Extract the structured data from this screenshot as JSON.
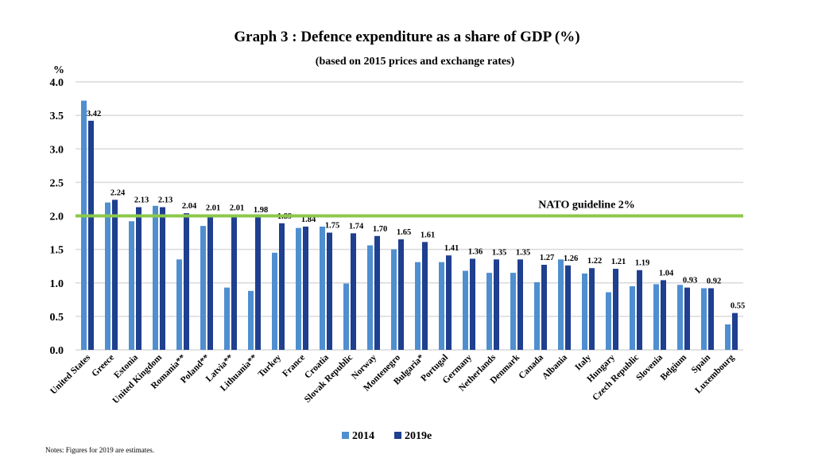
{
  "chart_data": {
    "type": "bar",
    "title": "Graph 3 : Defence expenditure as a share of GDP (%)",
    "subtitle": "(based on 2015 prices and exchange rates)",
    "ylabel": "%",
    "ylim": [
      0,
      4.0
    ],
    "yticks": [
      "0.0",
      "0.5",
      "1.0",
      "1.5",
      "2.0",
      "2.5",
      "3.0",
      "3.5",
      "4.0"
    ],
    "grid": true,
    "legend_position": "bottom",
    "categories": [
      "United States",
      "Greece",
      "Estonia",
      "United Kingdom",
      "Romania**",
      "Poland**",
      "Latvia**",
      "Lithuania**",
      "Turkey",
      "France",
      "Croatia",
      "Slovak Republic",
      "Norway",
      "Montenegro",
      "Bulgaria*",
      "Portugal",
      "Germany",
      "Netherlands",
      "Denmark",
      "Canada",
      "Albania",
      "Italy",
      "Hungary",
      "Czech Republic",
      "Slovenia",
      "Belgium",
      "Spain",
      "Luxembourg"
    ],
    "series": [
      {
        "name": "2014",
        "color": "#4f8fd0",
        "values": [
          3.72,
          2.2,
          1.92,
          2.15,
          1.35,
          1.85,
          0.93,
          0.88,
          1.45,
          1.82,
          1.84,
          0.99,
          1.56,
          1.5,
          1.31,
          1.31,
          1.18,
          1.15,
          1.15,
          1.01,
          1.35,
          1.14,
          0.86,
          0.95,
          0.98,
          0.97,
          0.92,
          0.38
        ]
      },
      {
        "name": "2019e",
        "color": "#1f3f8f",
        "values": [
          3.42,
          2.24,
          2.13,
          2.13,
          2.04,
          2.01,
          2.01,
          1.98,
          1.89,
          1.84,
          1.75,
          1.74,
          1.7,
          1.65,
          1.61,
          1.41,
          1.36,
          1.35,
          1.35,
          1.27,
          1.26,
          1.22,
          1.21,
          1.19,
          1.04,
          0.93,
          0.92,
          0.55
        ]
      }
    ],
    "data_labels": [
      "3.42",
      "2.24",
      "2.13",
      "2.13",
      "2.04",
      "2.01",
      "2.01",
      "1.98",
      "1.89",
      "1.84",
      "1.75",
      "1.74",
      "1.70",
      "1.65",
      "1.61",
      "1.41",
      "1.36",
      "1.35",
      "1.35",
      "1.27",
      "1.26",
      "1.22",
      "1.21",
      "1.19",
      "1.04",
      "0.93",
      "0.92",
      "0.55"
    ],
    "reference_line": {
      "value": 2.0,
      "label": "NATO guideline 2%",
      "color": "#8cc84b"
    }
  },
  "notes": "Notes: Figures for 2019 are estimates."
}
